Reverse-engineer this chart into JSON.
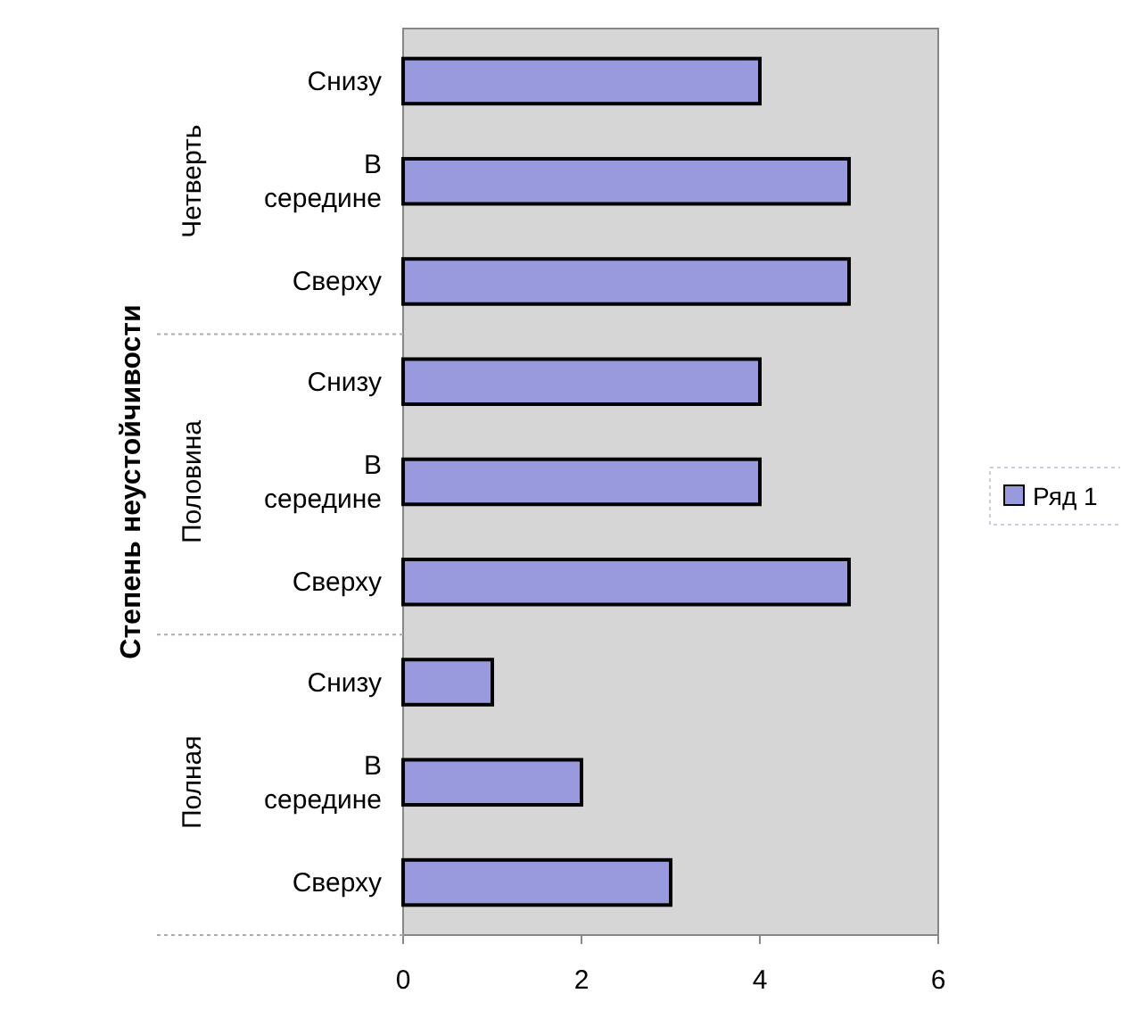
{
  "chart_data": {
    "type": "bar",
    "orientation": "horizontal",
    "ylabel": "Степень неустойчивости",
    "categories": [
      "Снизу",
      "В середине",
      "Сверху",
      "Снизу",
      "В середине",
      "Сверху",
      "Снизу",
      "В середине",
      "Сверху"
    ],
    "series": [
      {
        "name": "Ряд 1",
        "color": "#9999dd",
        "values": [
          4,
          5,
          5,
          4,
          4,
          5,
          1,
          2,
          3
        ]
      }
    ],
    "annotations": [
      "Четверть",
      "Половина",
      "Полная"
    ],
    "xlim": [
      0,
      6
    ],
    "xticks": [
      0,
      2,
      4,
      6
    ],
    "grid": false,
    "legend": "right"
  }
}
